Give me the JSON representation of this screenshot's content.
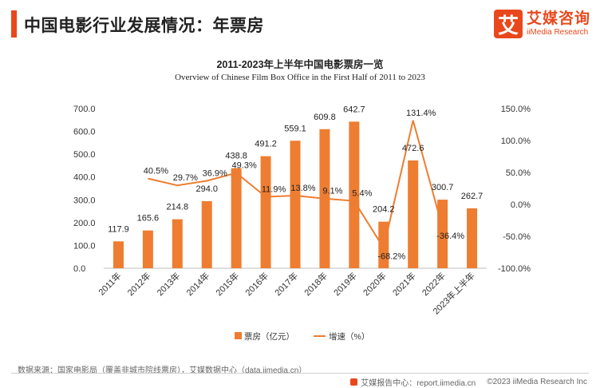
{
  "page": {
    "title": "中国电影行业发展情况：年票房",
    "logo_mark": "艾",
    "logo_cn": "艾媒咨询",
    "logo_en": "iiMedia Research",
    "source": "数据来源：国家电影局（覆盖非城市院线票房），艾媒数据中心（data.iimedia.cn）",
    "footer_center": "艾媒报告中心：report.iimedia.cn",
    "footer_right": "©2023  iiMedia Research  Inc"
  },
  "colors": {
    "bar": "#ee7d31",
    "line": "#ee7d31",
    "accent": "#e8481c"
  },
  "chart_data": {
    "type": "bar",
    "title": "2011-2023年上半年中国电影票房一览",
    "subtitle": "Overview of Chinese Film Box Office in the First Half of 2011 to 2023",
    "categories": [
      "2011年",
      "2012年",
      "2013年",
      "2014年",
      "2015年",
      "2016年",
      "2017年",
      "2018年",
      "2019年",
      "2020年",
      "2021年",
      "2022年",
      "2023年上半年"
    ],
    "series": [
      {
        "name": "票房（亿元）",
        "type": "bar",
        "axis": "left",
        "values": [
          117.9,
          165.6,
          214.8,
          294.0,
          438.8,
          491.2,
          559.1,
          609.8,
          642.7,
          204.2,
          472.6,
          300.7,
          262.7
        ],
        "labels": [
          "117.9",
          "165.6",
          "214.8",
          "294.0",
          "438.8",
          "491.2",
          "559.1",
          "609.8",
          "642.7",
          "204.2",
          "472.6",
          "300.7",
          "262.7"
        ]
      },
      {
        "name": "增速（%）",
        "type": "line",
        "axis": "right",
        "values": [
          null,
          40.5,
          29.7,
          36.9,
          49.3,
          11.9,
          13.8,
          9.1,
          5.4,
          -68.2,
          131.4,
          -36.4,
          null
        ],
        "labels": [
          "",
          "40.5%",
          "29.7%",
          "36.9%",
          "49.3%",
          "11.9%",
          "13.8%",
          "9.1%",
          "5.4%",
          "-68.2%",
          "131.4%",
          "-36.4%",
          ""
        ]
      }
    ],
    "y_left": {
      "min": 0,
      "max": 700,
      "ticks": [
        "0.0",
        "100.0",
        "200.0",
        "300.0",
        "400.0",
        "500.0",
        "600.0",
        "700.0"
      ]
    },
    "y_right": {
      "min": -100,
      "max": 150,
      "ticks": [
        "-100.0%",
        "-50.0%",
        "0.0%",
        "50.0%",
        "100.0%",
        "150.0%"
      ]
    },
    "grid": false,
    "legend_position": "bottom"
  }
}
